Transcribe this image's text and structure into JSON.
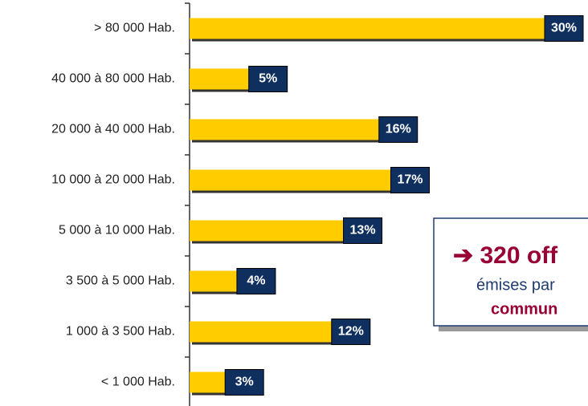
{
  "chart_data": {
    "type": "bar",
    "orientation": "horizontal",
    "categories": [
      "> 80 000 Hab.",
      "40 000 à 80 000 Hab.",
      "20 000 à 40 000 Hab.",
      "10 000 à 20 000 Hab.",
      "5 000 à 10 000 Hab.",
      "3 500 à 5 000 Hab.",
      "1 000 à 3 500 Hab.",
      "< 1 000 Hab."
    ],
    "values": [
      30,
      5,
      16,
      17,
      13,
      4,
      12,
      3
    ],
    "value_labels": [
      "30%",
      "5%",
      "16%",
      "17%",
      "13%",
      "4%",
      "12%",
      "3%"
    ],
    "color": "#ffcc00",
    "label_color": "#0f2f5e",
    "annotation": {
      "headline": "➔ 320 off",
      "line2": "émises par",
      "line3": "commun"
    }
  }
}
